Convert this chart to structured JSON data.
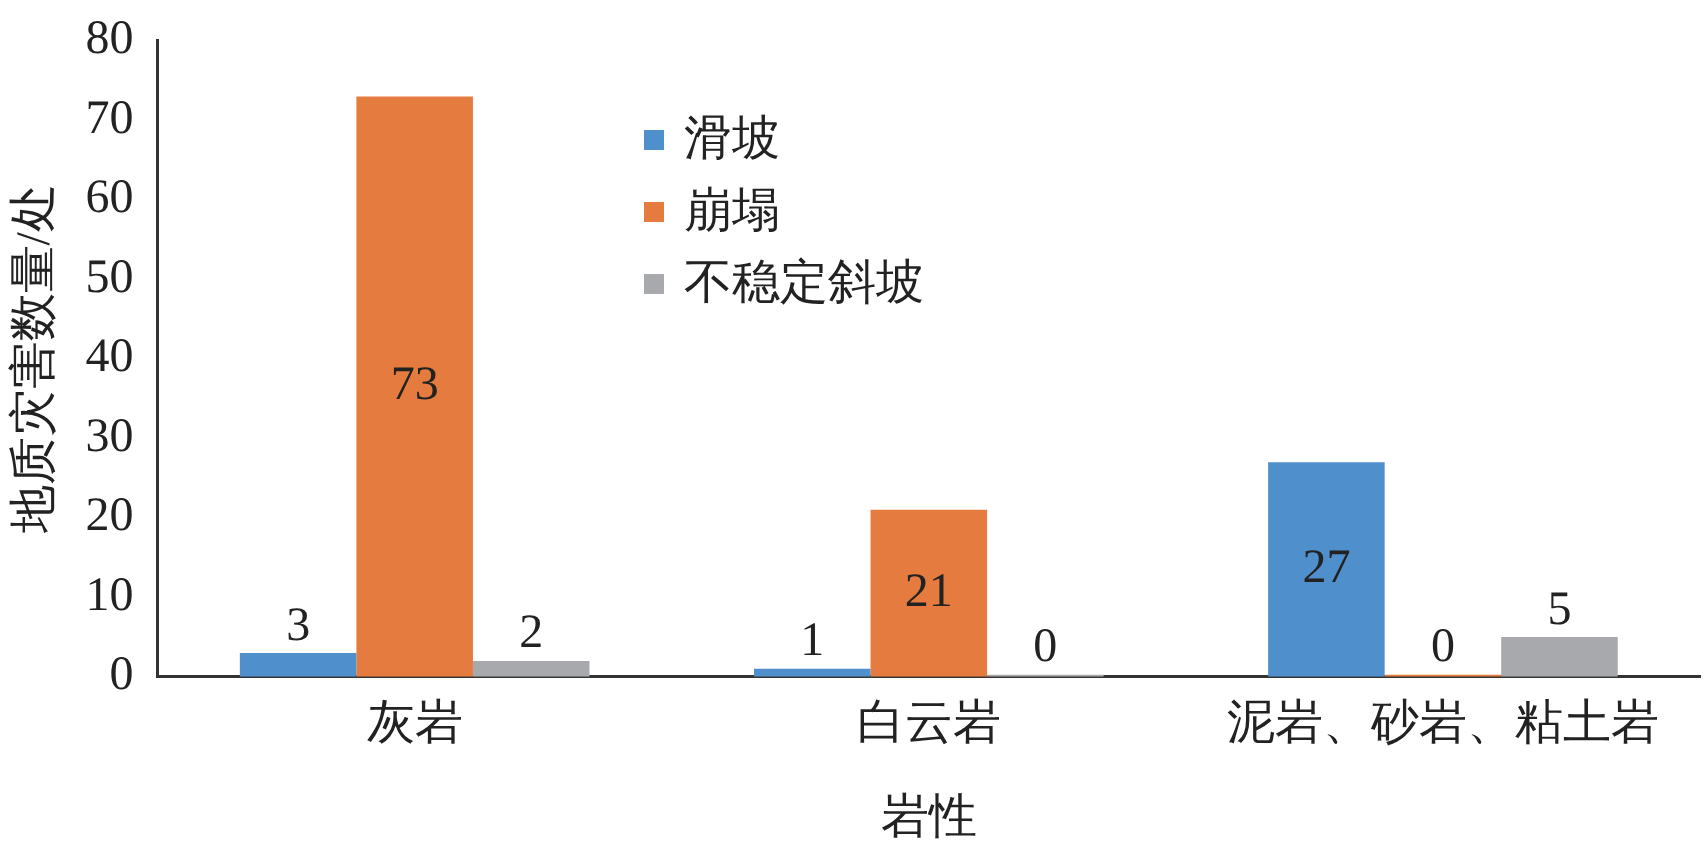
{
  "chart_data": {
    "type": "bar",
    "xlabel": "岩性",
    "ylabel": "地质灾害数量/处",
    "categories": [
      "灰岩",
      "白云岩",
      "泥岩、砂岩、粘土岩"
    ],
    "series": [
      {
        "name": "滑坡",
        "color": "#4e8fcc",
        "values": [
          3,
          1,
          27
        ]
      },
      {
        "name": "崩塌",
        "color": "#e57b3e",
        "values": [
          73,
          21,
          0
        ]
      },
      {
        "name": "不稳定斜坡",
        "color": "#a8a9ad",
        "values": [
          2,
          0,
          5
        ]
      }
    ],
    "ylim": [
      0,
      80
    ],
    "yticks": [
      0,
      10,
      20,
      30,
      40,
      50,
      60,
      70,
      80
    ],
    "grid": false,
    "legend": "top",
    "data_labels": true
  }
}
